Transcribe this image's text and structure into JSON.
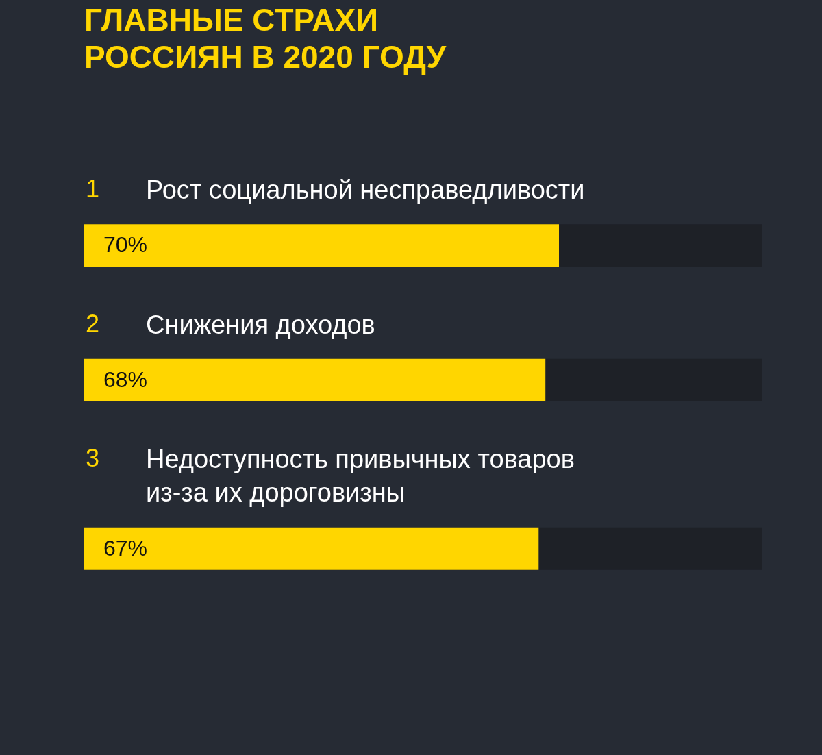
{
  "chart_data": {
    "type": "bar",
    "orientation": "horizontal",
    "title": "ГЛАВНЫЕ СТРАХИ\nРОССИЯН В 2020 ГОДУ",
    "categories": [
      "1 Рост социальной несправедливости",
      "2 Снижения доходов",
      "3 Недоступность привычных товаров из-за их дороговизны"
    ],
    "values": [
      70,
      68,
      67
    ],
    "value_labels": [
      "70%",
      "68%",
      "67%"
    ],
    "color": "#ffd600",
    "xlim": [
      0,
      100
    ],
    "tick_labels": false
  }
}
